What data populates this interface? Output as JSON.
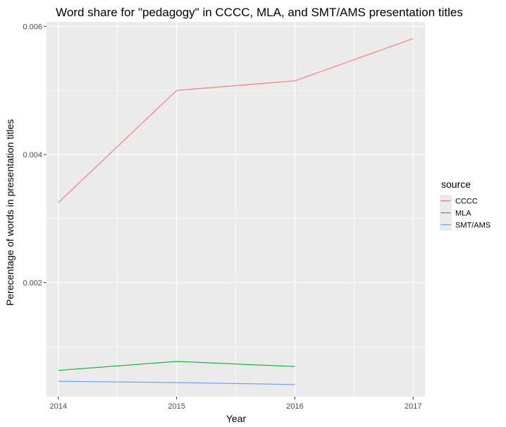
{
  "chart_data": {
    "type": "line",
    "title": "Word share for \"pedagogy\" in CCCC, MLA, and SMT/AMS presentation titles",
    "xlabel": "Year",
    "ylabel": "Perecentage of words in presentation titles",
    "xlim": [
      2013.9,
      2017.1
    ],
    "ylim": [
      0.00022,
      0.00607
    ],
    "x_ticks": [
      2014,
      2015,
      2016,
      2017
    ],
    "x_tick_labels": [
      "2014",
      "2015",
      "2016",
      "2017"
    ],
    "y_ticks": [
      0.002,
      0.004,
      0.006
    ],
    "y_tick_labels": [
      "0.002",
      "0.004",
      "0.006"
    ],
    "y_minor_ticks": [
      0.001,
      0.003,
      0.005
    ],
    "x_minor_ticks": [
      2014.5,
      2015.5,
      2016.5
    ],
    "grid": true,
    "panel_background": "#ebebeb",
    "grid_color": "#ffffff",
    "legend": {
      "title": "source",
      "placement": "right"
    },
    "series": [
      {
        "name": "CCCC",
        "color": "#F8766D",
        "x": [
          2014,
          2015,
          2016,
          2017
        ],
        "y": [
          0.00325,
          0.005,
          0.00515,
          0.00581
        ]
      },
      {
        "name": "MLA",
        "color": "#00BA38",
        "x": [
          2014,
          2015,
          2016
        ],
        "y": [
          0.00063,
          0.00077,
          0.00069
        ]
      },
      {
        "name": "SMT/AMS",
        "color": "#619CFF",
        "x": [
          2014,
          2015,
          2016
        ],
        "y": [
          0.00046,
          0.00044,
          0.00041
        ]
      }
    ]
  }
}
